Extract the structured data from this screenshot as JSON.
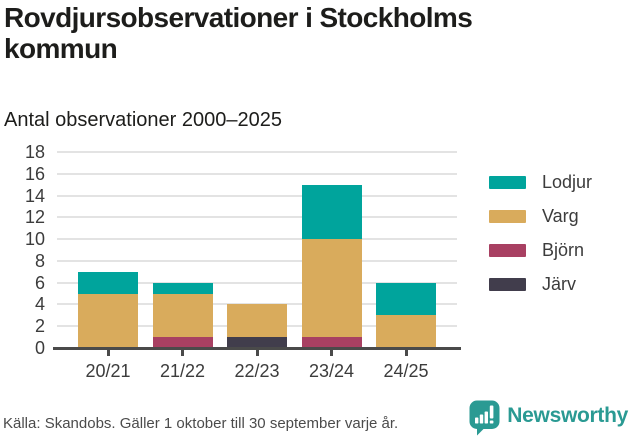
{
  "header": {
    "title": "Rovdjursobservationer i Stockholms kommun",
    "subtitle": "Antal observationer 2000–2025"
  },
  "chart_data": {
    "type": "bar",
    "stacked": true,
    "title": "Rovdjursobservationer i Stockholms kommun",
    "subtitle": "Antal observationer 2000–2025",
    "categories": [
      "20/21",
      "21/22",
      "22/23",
      "23/24",
      "24/25"
    ],
    "series": [
      {
        "name": "Lodjur",
        "color": "#00a49c",
        "values": [
          2,
          1,
          0,
          5,
          3
        ]
      },
      {
        "name": "Varg",
        "color": "#d9ab5c",
        "values": [
          5,
          4,
          3,
          9,
          3
        ]
      },
      {
        "name": "Björn",
        "color": "#a84062",
        "values": [
          0,
          1,
          0,
          1,
          0
        ]
      },
      {
        "name": "Järv",
        "color": "#413d4c",
        "values": [
          0,
          0,
          1,
          0,
          0
        ]
      }
    ],
    "stack_order_bottom_to_top": [
      "Järv",
      "Björn",
      "Varg",
      "Lodjur"
    ],
    "totals": [
      7,
      6,
      4,
      15,
      6
    ],
    "xlabel": "",
    "ylabel": "",
    "ylim": [
      0,
      18
    ],
    "y_ticks": [
      0,
      2,
      4,
      6,
      8,
      10,
      12,
      14,
      16,
      18
    ],
    "grid": true,
    "legend_position": "right"
  },
  "footer": {
    "source": "Källa: Skandobs. Gäller 1 oktober till 30 september varje år.",
    "logo_text": "Newsworthy"
  },
  "colors": {
    "title_text": "#1d1d1b",
    "tick_text": "#3c3c3c",
    "gridline": "#e3e3e3",
    "axis": "#4a4a4a",
    "logo_teal": "#2a9a93"
  }
}
